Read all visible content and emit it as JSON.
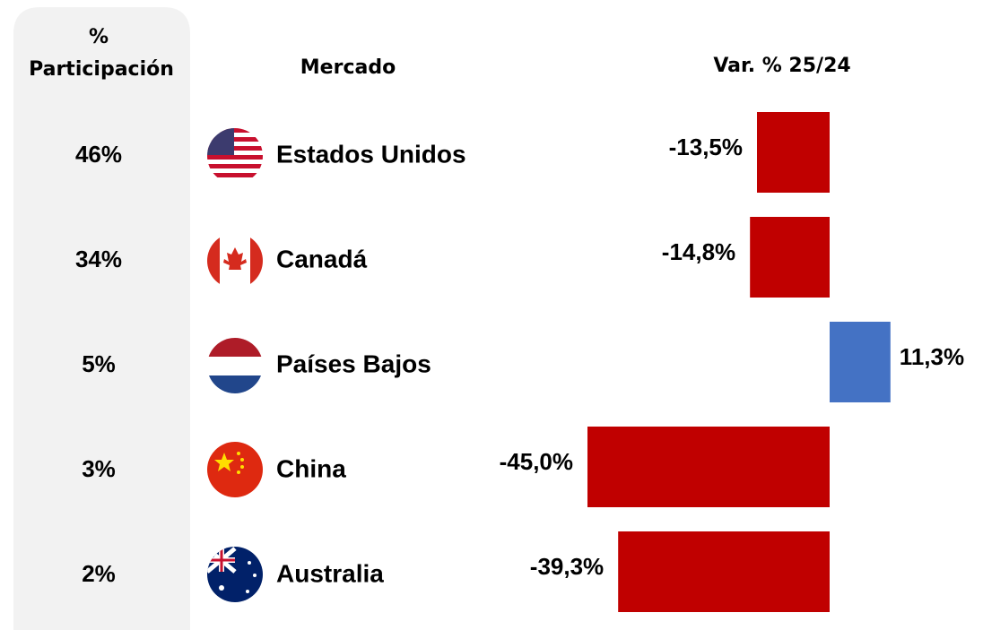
{
  "chart_data": {
    "type": "bar",
    "orientation": "horizontal",
    "headers": {
      "share": [
        "%",
        "Participación"
      ],
      "market": "Mercado",
      "change": "Var. % 25/24"
    },
    "categories": [
      "Estados Unidos",
      "Canadá",
      "Países Bajos",
      "China",
      "Australia"
    ],
    "shares": [
      "46%",
      "34%",
      "5%",
      "3%",
      "2%"
    ],
    "values": [
      -13.5,
      -14.8,
      11.3,
      -45.0,
      -39.3
    ],
    "value_labels": [
      "-13,5%",
      "-14,8%",
      "11,3%",
      "-45,0%",
      "-39,3%"
    ],
    "colors": {
      "negative": "#c00000",
      "positive": "#4472c4"
    }
  }
}
